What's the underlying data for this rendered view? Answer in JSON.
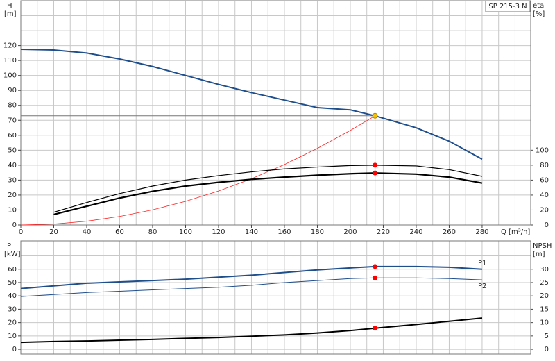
{
  "chart_data": [
    {
      "type": "line",
      "title": "SP 215-3 N",
      "x_label": "Q [m³/h]",
      "y_label": "H",
      "y_unit": "[m]",
      "y2_label": "eta",
      "y2_unit": "[%]",
      "x": [
        0,
        20,
        40,
        60,
        80,
        100,
        120,
        140,
        160,
        180,
        200,
        215,
        240,
        260,
        280
      ],
      "xlim": [
        0,
        309.5
      ],
      "xticks": [
        0,
        20,
        40,
        60,
        80,
        100,
        120,
        140,
        160,
        180,
        200,
        220,
        240,
        260,
        280
      ],
      "ylim": [
        0,
        150
      ],
      "yticks": [
        0,
        10,
        20,
        30,
        40,
        50,
        60,
        70,
        80,
        90,
        100,
        110,
        120
      ],
      "y2lim": [
        0,
        300
      ],
      "y2ticks": [
        0,
        20,
        40,
        60,
        80,
        100
      ],
      "grid": true,
      "xgrid": [
        0,
        10,
        20,
        30,
        40,
        50,
        60,
        70,
        80,
        90,
        100,
        110,
        120,
        130,
        140,
        150,
        160,
        170,
        180,
        190,
        200,
        210,
        220,
        230,
        240,
        250,
        260,
        270,
        280,
        290,
        300
      ],
      "ygrid": [
        0,
        10,
        20,
        30,
        40,
        50,
        60,
        70,
        80,
        90,
        100,
        110,
        120,
        130,
        140
      ],
      "duty_q": 215,
      "guides": true,
      "series": [
        {
          "color": "#1f4e8c",
          "width": 2,
          "marker_color": "#f5c400",
          "axis": "y",
          "values": [
            117.5,
            117,
            115,
            111,
            106,
            100,
            94,
            88.5,
            83.5,
            78.5,
            77,
            73,
            65,
            56,
            44
          ]
        },
        {
          "color": "#ff2020",
          "width": 0.8,
          "axis": "y",
          "values": [
            0,
            0.6,
            2.5,
            5.7,
            10.1,
            15.8,
            22.7,
            30.9,
            40.4,
            51.2,
            63.2,
            73,
            null,
            null,
            null
          ]
        },
        {
          "color": "#000000",
          "width": 1.2,
          "marker_color": "#ff0000",
          "axis": "y2",
          "values": [
            null,
            17,
            30,
            42,
            52,
            60,
            66,
            71,
            75,
            77.5,
            79.5,
            80,
            79,
            74,
            65
          ]
        },
        {
          "color": "#000000",
          "width": 2.2,
          "marker_color": "#ff0000",
          "axis": "y2",
          "values": [
            null,
            14,
            25,
            36,
            45,
            52,
            57,
            61,
            64,
            66.5,
            68.5,
            69.5,
            68,
            64,
            56
          ]
        }
      ]
    },
    {
      "type": "line",
      "y_label": "P",
      "y_unit": "[kW]",
      "y2_label": "NPSH",
      "y2_unit": "[m]",
      "x": [
        0,
        20,
        40,
        60,
        80,
        100,
        120,
        140,
        160,
        180,
        200,
        215,
        240,
        260,
        280
      ],
      "xlim": [
        0,
        309.5
      ],
      "ylim": [
        -3.6,
        81.2
      ],
      "yticks": [
        0,
        10,
        20,
        30,
        40,
        50,
        60
      ],
      "y2lim": [
        -1.8,
        40.6
      ],
      "y2ticks": [
        0,
        5,
        10,
        15,
        20,
        25,
        30
      ],
      "grid": true,
      "xgrid": [
        0,
        10,
        20,
        30,
        40,
        50,
        60,
        70,
        80,
        90,
        100,
        110,
        120,
        130,
        140,
        150,
        160,
        170,
        180,
        190,
        200,
        210,
        220,
        230,
        240,
        250,
        260,
        270,
        280,
        290,
        300
      ],
      "ygrid": [
        0,
        10,
        20,
        30,
        40,
        50,
        60,
        70
      ],
      "duty_q": 215,
      "series": [
        {
          "name": "P1",
          "color": "#1f4e8c",
          "width": 2,
          "marker_color": "#ff0000",
          "axis": "y",
          "values": [
            45.5,
            47.5,
            49.5,
            50.5,
            51.5,
            52.5,
            54,
            55.5,
            57.5,
            59.5,
            61,
            62,
            62,
            61.5,
            60
          ]
        },
        {
          "name": "P2",
          "color": "#1f4e8c",
          "width": 1,
          "marker_color": "#ff0000",
          "axis": "y",
          "values": [
            39.5,
            41,
            42.5,
            43.5,
            44.5,
            45.5,
            46.5,
            48,
            50,
            51.5,
            53,
            53.5,
            53.5,
            53,
            52
          ]
        },
        {
          "color": "#000000",
          "width": 2,
          "marker_color": "#ff0000",
          "axis": "y2",
          "values": [
            2.6,
            2.9,
            3.1,
            3.4,
            3.7,
            4.1,
            4.4,
            4.9,
            5.4,
            6.1,
            7,
            7.9,
            9.3,
            10.5,
            11.7
          ]
        }
      ]
    }
  ]
}
